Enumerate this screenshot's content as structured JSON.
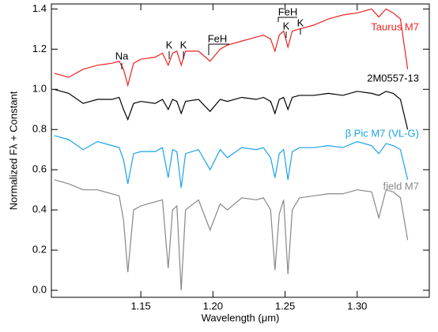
{
  "chart_data": {
    "type": "line",
    "x_label": "Wavelength (μm)",
    "y_label": "Normalized Fλ + Constant",
    "xlim": [
      1.088,
      1.35
    ],
    "ylim": [
      -0.035,
      1.425
    ],
    "xticks": [
      1.15,
      {
        "value": 1.2,
        "label": "1.20"
      },
      1.25,
      {
        "value": 1.3,
        "label": "1.30"
      }
    ],
    "yticks": [
      {
        "value": 0,
        "label": "0.0"
      },
      {
        "value": 0.2,
        "label": "0.2"
      },
      {
        "value": 0.4,
        "label": "0.4"
      },
      {
        "value": 0.6,
        "label": "0.6"
      },
      {
        "value": 0.8,
        "label": "0.8"
      },
      {
        "value": 1.0,
        "label": "1.0"
      },
      {
        "value": 1.2,
        "label": "1.2"
      },
      {
        "value": 1.4,
        "label": "1.4"
      }
    ],
    "x": [
      1.09,
      1.1,
      1.11,
      1.12,
      1.13,
      1.135,
      1.138,
      1.141,
      1.145,
      1.15,
      1.16,
      1.165,
      1.169,
      1.172,
      1.175,
      1.178,
      1.181,
      1.19,
      1.198,
      1.205,
      1.21,
      1.22,
      1.23,
      1.235,
      1.24,
      1.243,
      1.246,
      1.249,
      1.252,
      1.255,
      1.26,
      1.27,
      1.28,
      1.29,
      1.3,
      1.31,
      1.315,
      1.32,
      1.325,
      1.33,
      1.335
    ],
    "series": [
      {
        "name": "Taurus M7",
        "color": "#ee2222",
        "values": [
          1.08,
          1.06,
          1.1,
          1.12,
          1.13,
          1.14,
          1.1,
          1.02,
          1.13,
          1.15,
          1.16,
          1.18,
          1.12,
          1.18,
          1.19,
          1.12,
          1.19,
          1.19,
          1.14,
          1.2,
          1.22,
          1.24,
          1.26,
          1.27,
          1.25,
          1.19,
          1.27,
          1.29,
          1.21,
          1.29,
          1.3,
          1.32,
          1.35,
          1.37,
          1.38,
          1.4,
          1.36,
          1.4,
          1.38,
          1.35,
          1.1
        ]
      },
      {
        "name": "2M0557-13",
        "color": "#000000",
        "values": [
          1.0,
          0.98,
          0.93,
          0.95,
          0.95,
          0.96,
          0.9,
          0.85,
          0.93,
          0.94,
          0.93,
          0.95,
          0.9,
          0.95,
          0.94,
          0.88,
          0.94,
          0.95,
          0.89,
          0.95,
          0.94,
          0.96,
          0.95,
          0.96,
          0.94,
          0.88,
          0.95,
          0.96,
          0.9,
          0.96,
          0.97,
          0.97,
          0.98,
          0.97,
          0.99,
          0.98,
          0.97,
          0.99,
          0.98,
          0.95,
          0.8
        ]
      },
      {
        "name": "β Pic M7 (VL-G)",
        "color": "#1aa3e8",
        "values": [
          0.77,
          0.75,
          0.7,
          0.74,
          0.72,
          0.71,
          0.65,
          0.53,
          0.68,
          0.69,
          0.69,
          0.71,
          0.56,
          0.7,
          0.69,
          0.51,
          0.68,
          0.7,
          0.6,
          0.7,
          0.66,
          0.71,
          0.7,
          0.71,
          0.66,
          0.56,
          0.68,
          0.7,
          0.55,
          0.69,
          0.71,
          0.71,
          0.72,
          0.71,
          0.74,
          0.72,
          0.68,
          0.73,
          0.72,
          0.7,
          0.55
        ]
      },
      {
        "name": "field M7",
        "color": "#888888",
        "values": [
          0.55,
          0.53,
          0.5,
          0.5,
          0.48,
          0.47,
          0.35,
          0.09,
          0.4,
          0.42,
          0.44,
          0.45,
          0.11,
          0.4,
          0.42,
          0.0,
          0.4,
          0.45,
          0.3,
          0.43,
          0.4,
          0.46,
          0.45,
          0.46,
          0.4,
          0.1,
          0.38,
          0.45,
          0.08,
          0.4,
          0.46,
          0.47,
          0.48,
          0.48,
          0.5,
          0.49,
          0.36,
          0.5,
          0.49,
          0.46,
          0.25
        ]
      }
    ],
    "annotations": [
      "Na",
      "K",
      "K",
      "FeH",
      "FeH",
      "K",
      "K"
    ]
  }
}
